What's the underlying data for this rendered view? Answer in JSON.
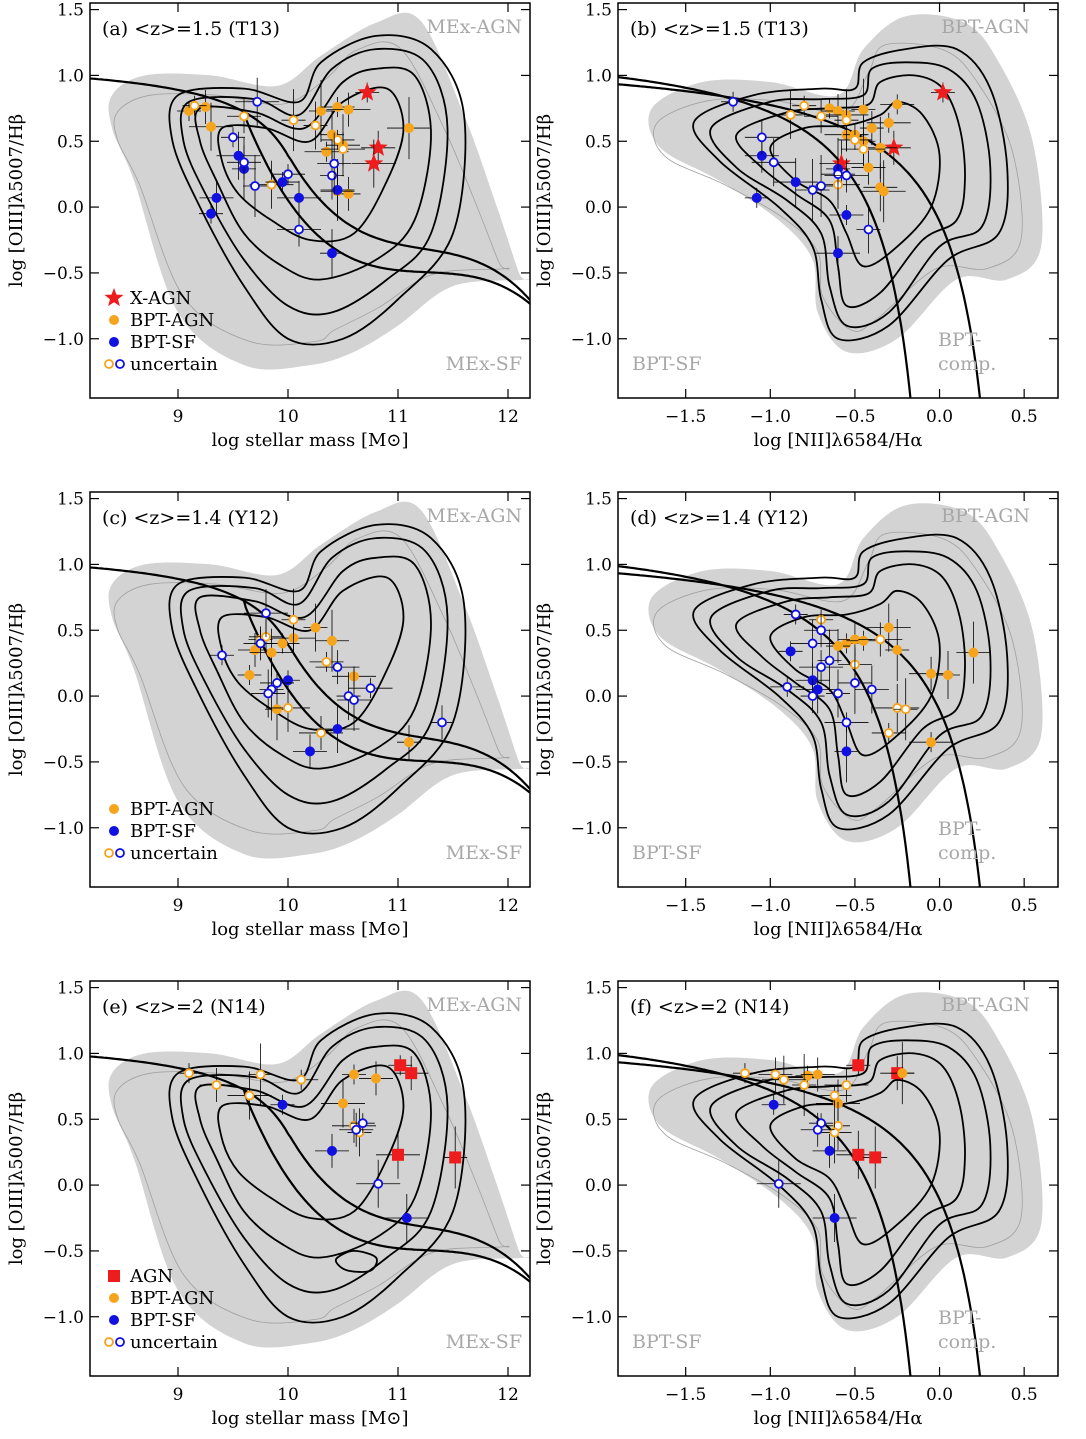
{
  "colors": {
    "agn": "#f5a41c",
    "sf": "#1010e0",
    "xagn": "#ee1c1c",
    "grey_fill": "#d3d3d3",
    "grey_text": "#a8a8a8",
    "grey_line": "#a0a0a0",
    "axis": "#000000"
  },
  "chart_data": [
    {
      "type": "scatter",
      "panel": "a",
      "title": "(a)  <z>=1.5 (T13)",
      "xlabel": "log stellar mass [M⊙]",
      "ylabel": "log [OIII]λ5007/Hβ",
      "xlim": [
        8.2,
        12.2
      ],
      "ylim": [
        -1.45,
        1.55
      ],
      "xticks": [
        9,
        10,
        11,
        12
      ],
      "yticks": [
        -1.0,
        -0.5,
        0.0,
        0.5,
        1.0,
        1.5
      ],
      "region_labels": [
        "MEx-AGN",
        "MEx-SF"
      ],
      "legend": [
        "X-AGN",
        "BPT-AGN",
        "BPT-SF",
        "uncertain"
      ],
      "series": [
        {
          "name": "X-AGN",
          "marker": "star",
          "points": [
            [
              10.72,
              0.87
            ],
            [
              10.82,
              0.45
            ],
            [
              10.78,
              0.33
            ]
          ]
        },
        {
          "name": "BPT-AGN",
          "marker": "circle",
          "points": [
            [
              9.1,
              0.73
            ],
            [
              9.25,
              0.76
            ],
            [
              9.3,
              0.61
            ],
            [
              10.3,
              0.73
            ],
            [
              10.45,
              0.76
            ],
            [
              10.55,
              0.74
            ],
            [
              10.4,
              0.55
            ],
            [
              10.5,
              0.47
            ],
            [
              10.35,
              0.42
            ],
            [
              10.55,
              0.1
            ],
            [
              10.45,
              0.12
            ],
            [
              11.1,
              0.6
            ]
          ]
        },
        {
          "name": "BPT-AGN uncertain",
          "marker": "open-circle",
          "points": [
            [
              9.15,
              0.77
            ],
            [
              9.6,
              0.69
            ],
            [
              9.85,
              0.17
            ],
            [
              10.05,
              0.66
            ],
            [
              10.45,
              0.51
            ],
            [
              10.5,
              0.44
            ],
            [
              10.25,
              0.62
            ]
          ]
        },
        {
          "name": "BPT-SF",
          "marker": "circle",
          "points": [
            [
              9.3,
              -0.05
            ],
            [
              9.35,
              0.07
            ],
            [
              9.55,
              0.39
            ],
            [
              9.6,
              0.29
            ],
            [
              9.95,
              0.19
            ],
            [
              10.1,
              0.07
            ],
            [
              10.4,
              -0.35
            ],
            [
              10.45,
              0.13
            ]
          ]
        },
        {
          "name": "BPT-SF uncertain",
          "marker": "open-circle",
          "points": [
            [
              9.5,
              0.53
            ],
            [
              9.6,
              0.34
            ],
            [
              9.72,
              0.8
            ],
            [
              9.7,
              0.16
            ],
            [
              10.0,
              0.25
            ],
            [
              10.1,
              -0.17
            ],
            [
              10.4,
              0.24
            ],
            [
              10.42,
              0.33
            ]
          ]
        }
      ]
    },
    {
      "type": "scatter",
      "panel": "b",
      "title": "(b)  <z>=1.5 (T13)",
      "xlabel": "log [NII]λ6584/Hα",
      "ylabel": "log [OIII]λ5007/Hβ",
      "xlim": [
        -1.9,
        0.7
      ],
      "ylim": [
        -1.45,
        1.55
      ],
      "xticks": [
        -1.5,
        -1.0,
        -0.5,
        0.0,
        0.5
      ],
      "yticks": [
        -1.0,
        -0.5,
        0.0,
        0.5,
        1.0,
        1.5
      ],
      "region_labels": [
        "BPT-AGN",
        "BPT-SF",
        "BPT-",
        "comp."
      ],
      "series": [
        {
          "name": "X-AGN",
          "marker": "star",
          "points": [
            [
              0.02,
              0.87
            ],
            [
              -0.27,
              0.45
            ],
            [
              -0.58,
              0.33
            ]
          ]
        },
        {
          "name": "BPT-AGN",
          "marker": "circle",
          "points": [
            [
              -0.65,
              0.75
            ],
            [
              -0.6,
              0.73
            ],
            [
              -0.55,
              0.7
            ],
            [
              -0.45,
              0.74
            ],
            [
              -0.25,
              0.78
            ],
            [
              -0.55,
              0.55
            ],
            [
              -0.45,
              0.5
            ],
            [
              -0.35,
              0.45
            ],
            [
              -0.3,
              0.64
            ],
            [
              -0.4,
              0.6
            ],
            [
              -0.35,
              0.15
            ],
            [
              -0.33,
              0.12
            ],
            [
              -0.5,
              0.55
            ],
            [
              -0.42,
              0.3
            ]
          ]
        },
        {
          "name": "BPT-AGN uncertain",
          "marker": "open-circle",
          "points": [
            [
              -0.8,
              0.77
            ],
            [
              -0.7,
              0.69
            ],
            [
              -0.6,
              0.17
            ],
            [
              -0.55,
              0.66
            ],
            [
              -0.5,
              0.51
            ],
            [
              -0.45,
              0.44
            ],
            [
              -0.88,
              0.7
            ]
          ]
        },
        {
          "name": "BPT-SF",
          "marker": "circle",
          "points": [
            [
              -1.08,
              0.07
            ],
            [
              -1.05,
              0.39
            ],
            [
              -0.85,
              0.19
            ],
            [
              -0.6,
              0.29
            ],
            [
              -0.55,
              -0.06
            ],
            [
              -0.6,
              -0.35
            ]
          ]
        },
        {
          "name": "BPT-SF uncertain",
          "marker": "open-circle",
          "points": [
            [
              -1.22,
              0.8
            ],
            [
              -1.05,
              0.53
            ],
            [
              -0.98,
              0.34
            ],
            [
              -0.7,
              0.16
            ],
            [
              -0.6,
              0.25
            ],
            [
              -0.55,
              0.24
            ],
            [
              -0.42,
              -0.17
            ],
            [
              -0.75,
              0.13
            ]
          ]
        }
      ]
    },
    {
      "type": "scatter",
      "panel": "c",
      "title": "(c)  <z>=1.4 (Y12)",
      "xlabel": "log stellar mass [M⊙]",
      "ylabel": "log [OIII]λ5007/Hβ",
      "xlim": [
        8.2,
        12.2
      ],
      "ylim": [
        -1.45,
        1.55
      ],
      "xticks": [
        9,
        10,
        11,
        12
      ],
      "yticks": [
        -1.0,
        -0.5,
        0.0,
        0.5,
        1.0,
        1.5
      ],
      "region_labels": [
        "MEx-AGN",
        "MEx-SF"
      ],
      "legend": [
        "BPT-AGN",
        "BPT-SF",
        "uncertain"
      ],
      "series": [
        {
          "name": "BPT-AGN",
          "marker": "circle",
          "points": [
            [
              9.65,
              0.16
            ],
            [
              9.7,
              0.35
            ],
            [
              9.85,
              0.33
            ],
            [
              9.9,
              -0.1
            ],
            [
              9.95,
              0.4
            ],
            [
              10.05,
              0.44
            ],
            [
              10.25,
              0.52
            ],
            [
              10.4,
              0.42
            ],
            [
              10.6,
              0.15
            ],
            [
              11.1,
              -0.35
            ]
          ]
        },
        {
          "name": "BPT-AGN uncertain",
          "marker": "open-circle",
          "points": [
            [
              9.75,
              0.43
            ],
            [
              9.8,
              0.45
            ],
            [
              10.0,
              -0.09
            ],
            [
              10.05,
              0.58
            ],
            [
              10.35,
              0.26
            ],
            [
              10.3,
              -0.28
            ]
          ]
        },
        {
          "name": "BPT-SF",
          "marker": "circle",
          "points": [
            [
              10.0,
              0.12
            ],
            [
              10.2,
              -0.42
            ],
            [
              10.45,
              -0.25
            ]
          ]
        },
        {
          "name": "BPT-SF uncertain",
          "marker": "open-circle",
          "points": [
            [
              9.4,
              0.31
            ],
            [
              9.75,
              0.4
            ],
            [
              9.8,
              0.63
            ],
            [
              9.85,
              0.05
            ],
            [
              9.9,
              0.1
            ],
            [
              10.45,
              0.22
            ],
            [
              10.55,
              0.0
            ],
            [
              10.6,
              -0.03
            ],
            [
              10.75,
              0.06
            ],
            [
              11.4,
              -0.2
            ],
            [
              9.82,
              0.02
            ]
          ]
        }
      ]
    },
    {
      "type": "scatter",
      "panel": "d",
      "title": "(d)  <z>=1.4 (Y12)",
      "xlabel": "log [NII]λ6584/Hα",
      "ylabel": "log [OIII]λ5007/Hβ",
      "xlim": [
        -1.9,
        0.7
      ],
      "ylim": [
        -1.45,
        1.55
      ],
      "xticks": [
        -1.5,
        -1.0,
        -0.5,
        0.0,
        0.5
      ],
      "yticks": [
        -1.0,
        -0.5,
        0.0,
        0.5,
        1.0,
        1.5
      ],
      "region_labels": [
        "BPT-AGN",
        "BPT-SF",
        "BPT-",
        "comp."
      ],
      "series": [
        {
          "name": "BPT-AGN",
          "marker": "circle",
          "points": [
            [
              -0.55,
              0.4
            ],
            [
              -0.5,
              0.43
            ],
            [
              -0.3,
              0.52
            ],
            [
              -0.25,
              0.35
            ],
            [
              -0.45,
              0.42
            ],
            [
              -0.05,
              0.17
            ],
            [
              0.05,
              0.16
            ],
            [
              0.2,
              0.33
            ],
            [
              -0.05,
              -0.35
            ],
            [
              -0.6,
              0.38
            ]
          ]
        },
        {
          "name": "BPT-AGN uncertain",
          "marker": "open-circle",
          "points": [
            [
              -0.7,
              0.58
            ],
            [
              -0.5,
              0.24
            ],
            [
              -0.25,
              -0.09
            ],
            [
              -0.2,
              -0.1
            ],
            [
              -0.3,
              -0.28
            ],
            [
              -0.35,
              0.43
            ]
          ]
        },
        {
          "name": "BPT-SF",
          "marker": "circle",
          "points": [
            [
              -0.88,
              0.34
            ],
            [
              -0.75,
              0.12
            ],
            [
              -0.72,
              0.05
            ],
            [
              -0.55,
              -0.42
            ]
          ]
        },
        {
          "name": "BPT-SF uncertain",
          "marker": "open-circle",
          "points": [
            [
              -0.85,
              0.62
            ],
            [
              -0.7,
              0.5
            ],
            [
              -0.75,
              0.4
            ],
            [
              -0.65,
              0.27
            ],
            [
              -0.9,
              0.07
            ],
            [
              -0.7,
              0.22
            ],
            [
              -0.6,
              0.02
            ],
            [
              -0.5,
              0.1
            ],
            [
              -0.55,
              -0.2
            ],
            [
              -0.75,
              0.0
            ],
            [
              -0.4,
              0.05
            ]
          ]
        }
      ]
    },
    {
      "type": "scatter",
      "panel": "e",
      "title": "(e)  <z>=2 (N14)",
      "xlabel": "log stellar mass [M⊙]",
      "ylabel": "log [OIII]λ5007/Hβ",
      "xlim": [
        8.2,
        12.2
      ],
      "ylim": [
        -1.45,
        1.55
      ],
      "xticks": [
        9,
        10,
        11,
        12
      ],
      "yticks": [
        -1.0,
        -0.5,
        0.0,
        0.5,
        1.0,
        1.5
      ],
      "region_labels": [
        "MEx-AGN",
        "MEx-SF"
      ],
      "legend": [
        "AGN",
        "BPT-AGN",
        "BPT-SF",
        "uncertain"
      ],
      "series": [
        {
          "name": "AGN",
          "marker": "square",
          "points": [
            [
              11.02,
              0.91
            ],
            [
              11.12,
              0.85
            ],
            [
              11.0,
              0.23
            ],
            [
              11.52,
              0.21
            ]
          ]
        },
        {
          "name": "BPT-AGN",
          "marker": "circle",
          "points": [
            [
              10.6,
              0.84
            ],
            [
              10.8,
              0.81
            ],
            [
              10.5,
              0.62
            ]
          ]
        },
        {
          "name": "BPT-AGN uncertain",
          "marker": "open-circle",
          "points": [
            [
              9.1,
              0.85
            ],
            [
              9.35,
              0.76
            ],
            [
              9.65,
              0.68
            ],
            [
              9.75,
              0.84
            ],
            [
              10.12,
              0.8
            ],
            [
              10.6,
              0.45
            ],
            [
              10.65,
              0.4
            ]
          ]
        },
        {
          "name": "BPT-SF",
          "marker": "circle",
          "points": [
            [
              9.95,
              0.61
            ],
            [
              10.4,
              0.26
            ],
            [
              11.08,
              -0.25
            ]
          ]
        },
        {
          "name": "BPT-SF uncertain",
          "marker": "open-circle",
          "points": [
            [
              10.68,
              0.47
            ],
            [
              10.62,
              0.42
            ],
            [
              10.82,
              0.01
            ]
          ]
        }
      ]
    },
    {
      "type": "scatter",
      "panel": "f",
      "title": "(f)  <z>=2 (N14)",
      "xlabel": "log [NII]λ6584/Hα",
      "ylabel": "log [OIII]λ5007/Hβ",
      "xlim": [
        -1.9,
        0.7
      ],
      "ylim": [
        -1.45,
        1.55
      ],
      "xticks": [
        -1.5,
        -1.0,
        -0.5,
        0.0,
        0.5
      ],
      "yticks": [
        -1.0,
        -0.5,
        0.0,
        0.5,
        1.0,
        1.5
      ],
      "region_labels": [
        "BPT-AGN",
        "BPT-SF",
        "BPT-",
        "comp."
      ],
      "series": [
        {
          "name": "AGN",
          "marker": "square",
          "points": [
            [
              -0.48,
              0.91
            ],
            [
              -0.25,
              0.85
            ],
            [
              -0.48,
              0.23
            ],
            [
              -0.38,
              0.21
            ]
          ]
        },
        {
          "name": "BPT-AGN",
          "marker": "circle",
          "points": [
            [
              -0.78,
              0.83
            ],
            [
              -0.72,
              0.84
            ],
            [
              -0.6,
              0.62
            ],
            [
              -0.22,
              0.85
            ]
          ]
        },
        {
          "name": "BPT-AGN uncertain",
          "marker": "open-circle",
          "points": [
            [
              -1.15,
              0.85
            ],
            [
              -0.97,
              0.84
            ],
            [
              -0.92,
              0.8
            ],
            [
              -0.8,
              0.76
            ],
            [
              -0.62,
              0.68
            ],
            [
              -0.55,
              0.76
            ],
            [
              -0.6,
              0.45
            ],
            [
              -0.62,
              0.4
            ]
          ]
        },
        {
          "name": "BPT-SF",
          "marker": "circle",
          "points": [
            [
              -0.98,
              0.61
            ],
            [
              -0.65,
              0.26
            ],
            [
              -0.62,
              -0.25
            ]
          ]
        },
        {
          "name": "BPT-SF uncertain",
          "marker": "open-circle",
          "points": [
            [
              -0.7,
              0.47
            ],
            [
              -0.72,
              0.42
            ],
            [
              -0.95,
              0.01
            ]
          ]
        }
      ]
    }
  ]
}
